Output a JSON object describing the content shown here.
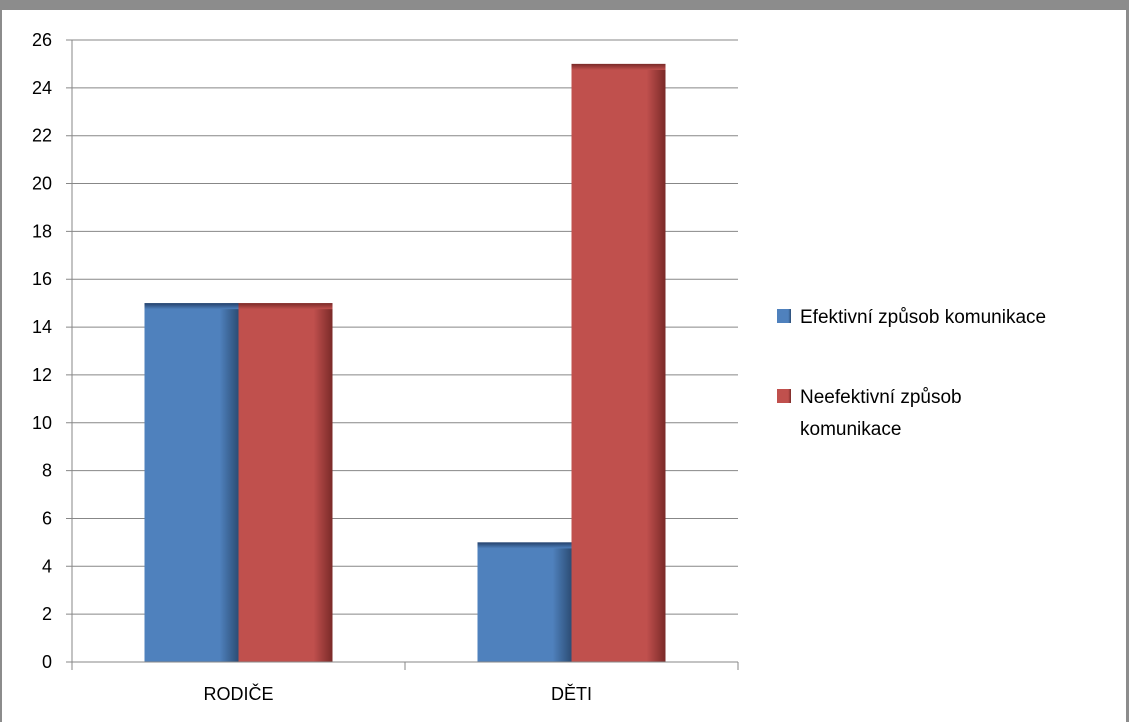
{
  "chart_data": {
    "type": "bar",
    "categories": [
      "RODIČE",
      "DĚTI"
    ],
    "series": [
      {
        "name": "Efektivní způsob komunikace",
        "values": [
          15,
          5
        ],
        "color": "#4F81BD"
      },
      {
        "name": "Neefektivní způsob komunikace",
        "values": [
          15,
          25
        ],
        "color": "#C0504D"
      }
    ],
    "ylim": [
      0,
      26
    ],
    "y_tick_step": 2,
    "y_ticks": [
      "0",
      "2",
      "4",
      "6",
      "8",
      "10",
      "12",
      "14",
      "16",
      "18",
      "20",
      "22",
      "24",
      "26"
    ],
    "grid": true,
    "legend_position": "right",
    "title": "",
    "xlabel": "",
    "ylabel": ""
  }
}
